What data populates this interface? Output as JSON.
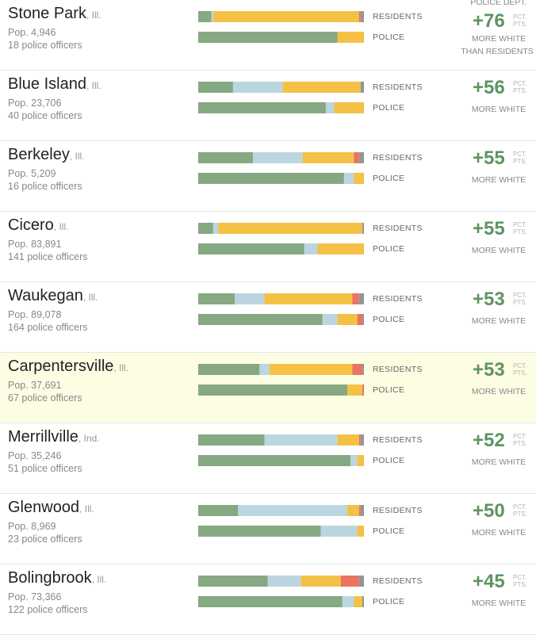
{
  "colors": {
    "white": "#86a882",
    "black": "#bcd6e0",
    "hispanic": "#f4c145",
    "asian": "#ea7361",
    "other": "#959595",
    "diff_text": "#5d9462",
    "highlight_bg": "#fdfde4"
  },
  "labels": {
    "residents": "RESIDENTS",
    "police": "POLICE",
    "header_top": "POLICE DEPT.",
    "more_white": "MORE WHITE",
    "than_residents": "THAN RESIDENTS",
    "pct_pts_1": "PCT.",
    "pct_pts_2": "PTS."
  },
  "chart_data": {
    "type": "bar",
    "stacked": true,
    "orientation": "horizontal",
    "segment_order": [
      "white",
      "black",
      "hispanic",
      "asian",
      "other"
    ],
    "rows": [
      {
        "city": "Stone Park",
        "state": ", Ill.",
        "pop": "Pop. 4,946",
        "officers": "18 police officers",
        "diff": "+76",
        "highlight": false,
        "residents": [
          8,
          1,
          88,
          1,
          2
        ],
        "police": [
          84,
          0,
          16,
          0,
          0
        ]
      },
      {
        "city": "Blue Island",
        "state": ", Ill.",
        "pop": "Pop. 23,706",
        "officers": "40 police officers",
        "diff": "+56",
        "highlight": false,
        "residents": [
          21,
          30,
          47,
          0,
          2
        ],
        "police": [
          77,
          5,
          18,
          0,
          0
        ]
      },
      {
        "city": "Berkeley",
        "state": ", Ill.",
        "pop": "Pop. 5,209",
        "officers": "16 police officers",
        "diff": "+55",
        "highlight": false,
        "residents": [
          33,
          30,
          31,
          3,
          3
        ],
        "police": [
          88,
          6,
          6,
          0,
          0
        ]
      },
      {
        "city": "Cicero",
        "state": ", Ill.",
        "pop": "Pop. 83,891",
        "officers": "141 police officers",
        "diff": "+55",
        "highlight": false,
        "residents": [
          9,
          3,
          87,
          0,
          1
        ],
        "police": [
          64,
          8,
          28,
          0,
          0
        ]
      },
      {
        "city": "Waukegan",
        "state": ", Ill.",
        "pop": "Pop. 89,078",
        "officers": "164 police officers",
        "diff": "+53",
        "highlight": false,
        "residents": [
          22,
          18,
          53,
          4,
          3
        ],
        "police": [
          75,
          9,
          12,
          3,
          1
        ]
      },
      {
        "city": "Carpentersville",
        "state": ", Ill.",
        "pop": "Pop. 37,691",
        "officers": "67 police officers",
        "diff": "+53",
        "highlight": true,
        "residents": [
          37,
          6,
          50,
          6,
          1
        ],
        "police": [
          90,
          0,
          9,
          1,
          0
        ]
      },
      {
        "city": "Merrillville",
        "state": ", Ind.",
        "pop": "Pop. 35,246",
        "officers": "51 police officers",
        "diff": "+52",
        "highlight": false,
        "residents": [
          40,
          44,
          13,
          1,
          2
        ],
        "police": [
          92,
          4,
          4,
          0,
          0
        ]
      },
      {
        "city": "Glenwood",
        "state": ", Ill.",
        "pop": "Pop. 8,969",
        "officers": "23 police officers",
        "diff": "+50",
        "highlight": false,
        "residents": [
          24,
          66,
          7,
          1,
          2
        ],
        "police": [
          74,
          22,
          4,
          0,
          0
        ]
      },
      {
        "city": "Bolingbrook",
        "state": ", Ill.",
        "pop": "Pop. 73,366",
        "officers": "122 police officers",
        "diff": "+45",
        "highlight": false,
        "residents": [
          42,
          20,
          24,
          11,
          3
        ],
        "police": [
          87,
          7,
          5,
          0,
          1
        ]
      }
    ]
  }
}
